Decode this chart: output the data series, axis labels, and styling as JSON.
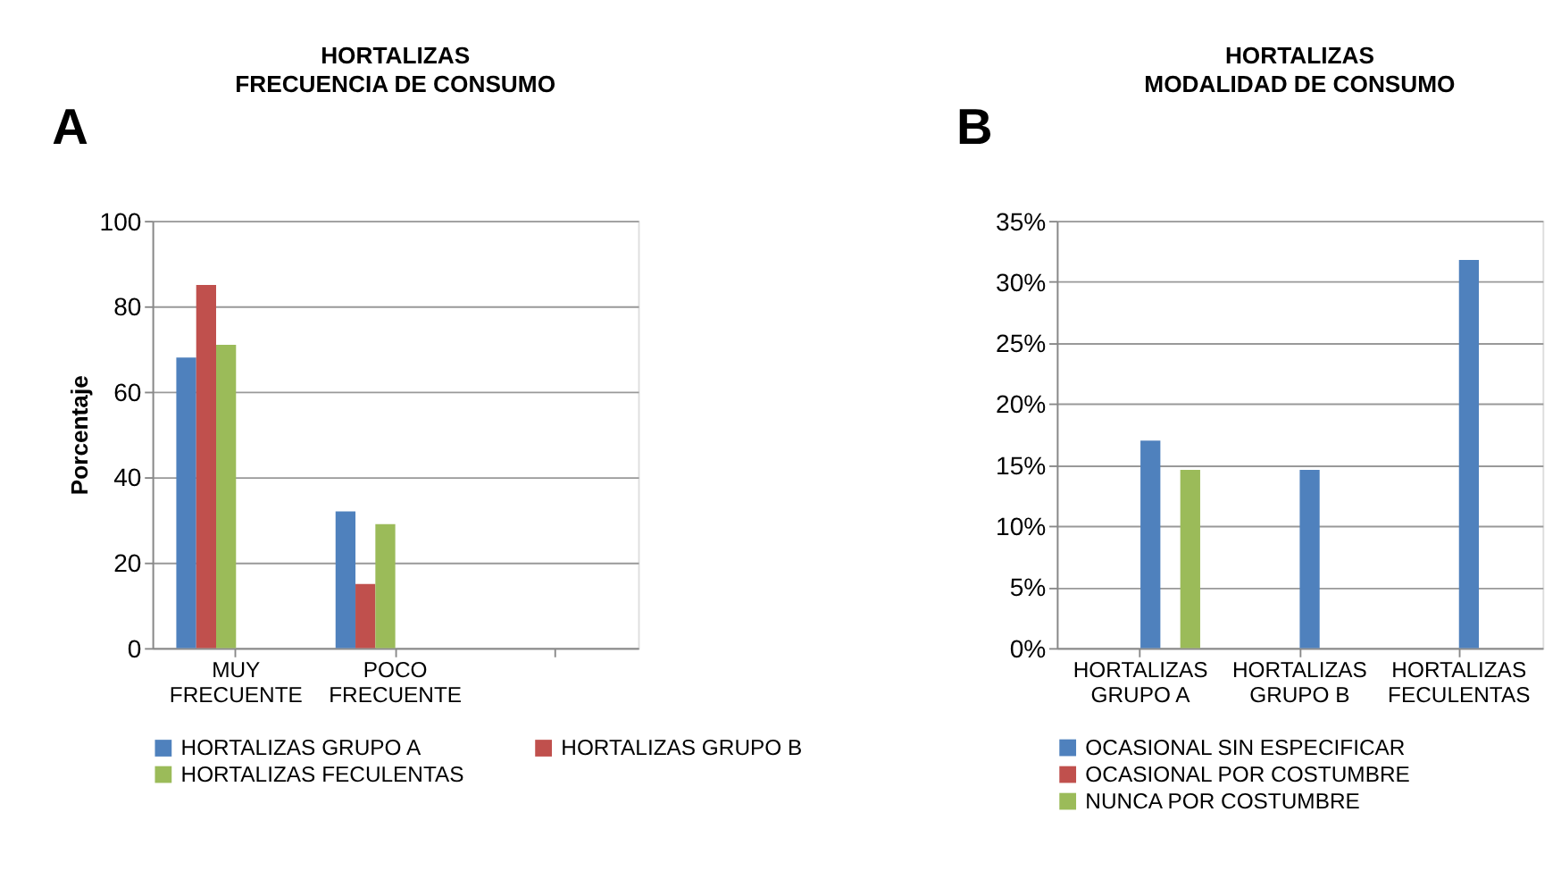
{
  "chart_data": [
    {
      "type": "bar",
      "title": "HORTALIZAS",
      "subtitle": "FRECUENCIA DE CONSUMO",
      "ylabel": "Porcentaje",
      "annotations": [
        "A"
      ],
      "categories": [
        "MUY FRECUENTE",
        "POCO FRECUENTE",
        null
      ],
      "series": [
        {
          "name": "HORTALIZAS GRUPO A",
          "color": "#4f81bd",
          "values": [
            68,
            32,
            null
          ]
        },
        {
          "name": "HORTALIZAS GRUPO B",
          "color": "#c0504d",
          "values": [
            85,
            15,
            null
          ]
        },
        {
          "name": "HORTALIZAS FECULENTAS",
          "color": "#9bbb59",
          "values": [
            71,
            29,
            null
          ]
        }
      ],
      "ylim": [
        0,
        100
      ],
      "yticks": [
        0,
        20,
        40,
        60,
        80,
        100
      ],
      "grid": "y",
      "legend": "bottom"
    },
    {
      "type": "bar",
      "title": "HORTALIZAS",
      "subtitle": "MODALIDAD DE CONSUMO",
      "annotations": [
        "B"
      ],
      "categories": [
        "HORTALIZAS GRUPO A",
        "HORTALIZAS GRUPO B",
        "HORTALIZAS FECULENTAS"
      ],
      "series": [
        {
          "name": "OCASIONAL SIN ESPECIFICAR",
          "color": "#4f81bd",
          "values": [
            17,
            14.6,
            31.8
          ]
        },
        {
          "name": "OCASIONAL POR COSTUMBRE",
          "color": "#c0504d",
          "values": [
            null,
            null,
            null
          ]
        },
        {
          "name": "NUNCA POR COSTUMBRE",
          "color": "#9bbb59",
          "values": [
            14.6,
            null,
            null
          ]
        }
      ],
      "ylim": [
        0,
        35
      ],
      "yticks": [
        {
          "value": 0,
          "label": "0%"
        },
        {
          "value": 5,
          "label": "5%"
        },
        {
          "value": 10,
          "label": "10%"
        },
        {
          "value": 15,
          "label": "15%"
        },
        {
          "value": 20,
          "label": "20%"
        },
        {
          "value": 25,
          "label": "25%"
        },
        {
          "value": 30,
          "label": "30%"
        },
        {
          "value": 35,
          "label": "35%"
        }
      ],
      "grid": "y",
      "legend": "bottom"
    }
  ]
}
